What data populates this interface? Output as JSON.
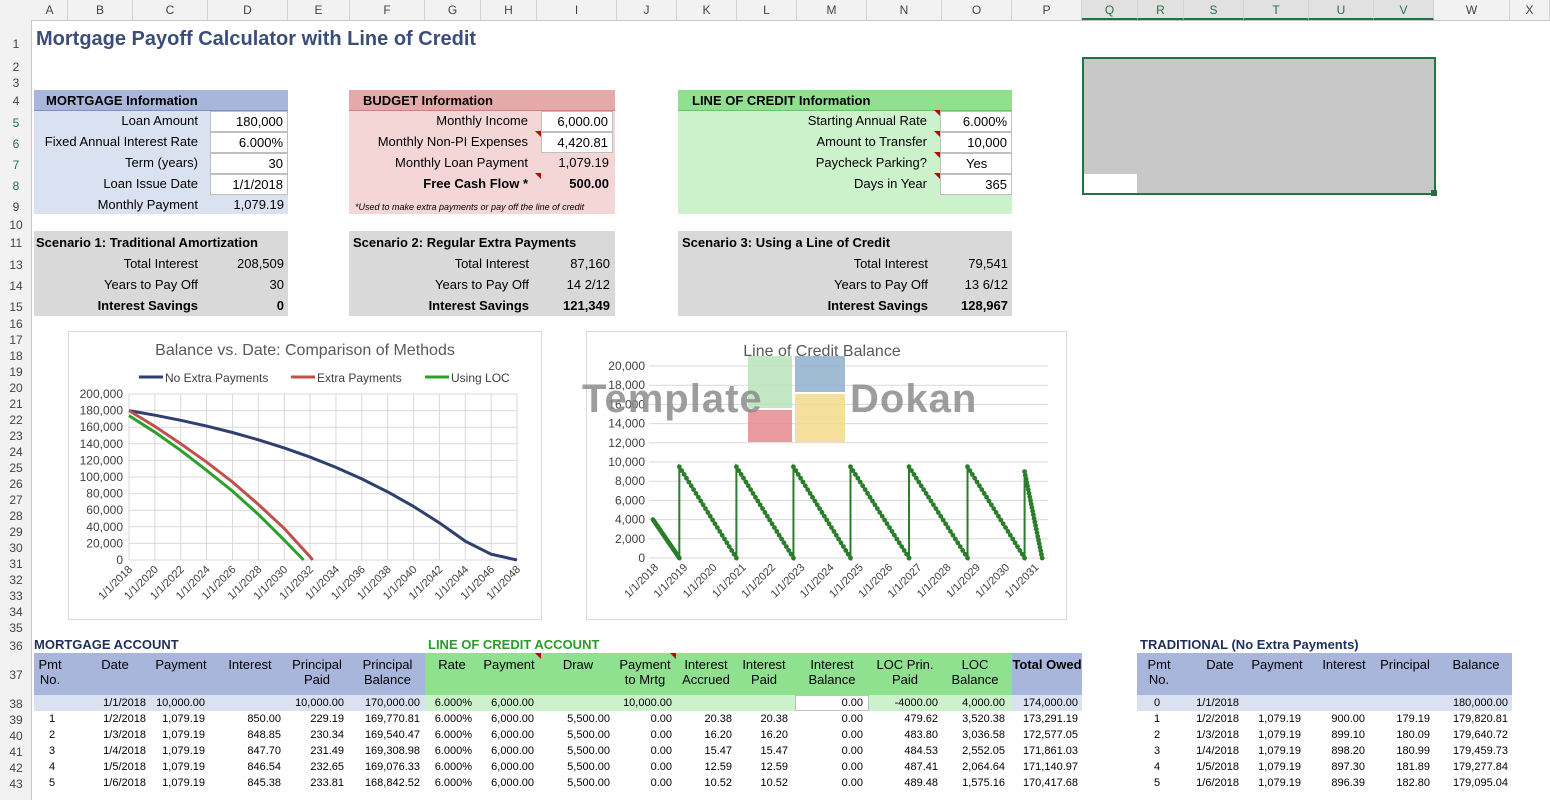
{
  "columns": [
    "A",
    "B",
    "C",
    "D",
    "E",
    "F",
    "G",
    "H",
    "I",
    "J",
    "K",
    "L",
    "M",
    "N",
    "O",
    "P",
    "Q",
    "R",
    "S",
    "T",
    "U",
    "V",
    "W",
    "X"
  ],
  "rows": [
    "1",
    "2",
    "3",
    "4",
    "5",
    "6",
    "7",
    "8",
    "9",
    "10",
    "11",
    "13",
    "14",
    "15",
    "16",
    "17",
    "18",
    "19",
    "20",
    "21",
    "22",
    "23",
    "24",
    "25",
    "26",
    "27",
    "28",
    "29",
    "30",
    "31",
    "32",
    "33",
    "34",
    "35",
    "36",
    "37",
    "38",
    "39",
    "40",
    "41",
    "42",
    "43"
  ],
  "title": "Mortgage Payoff Calculator with Line of Credit",
  "mortgage": {
    "header": "MORTGAGE Information",
    "loan_amount_label": "Loan Amount",
    "loan_amount": "180,000",
    "rate_label": "Fixed Annual Interest Rate",
    "rate": "6.000%",
    "term_label": "Term (years)",
    "term": "30",
    "issue_label": "Loan Issue Date",
    "issue": "1/1/2018",
    "payment_label": "Monthly Payment",
    "payment": "1,079.19"
  },
  "budget": {
    "header": "BUDGET Information",
    "income_label": "Monthly Income",
    "income": "6,000.00",
    "expenses_label": "Monthly Non-PI Expenses",
    "expenses": "4,420.81",
    "loanpay_label": "Monthly Loan Payment",
    "loanpay": "1,079.19",
    "fcf_label": "Free Cash Flow *",
    "fcf": "500.00",
    "note": "*Used to make extra payments or pay off the line of credit"
  },
  "loc": {
    "header": "LINE OF CREDIT Information",
    "rate_label": "Starting Annual Rate",
    "rate": "6.000%",
    "transfer_label": "Amount to Transfer",
    "transfer": "10,000",
    "parking_label": "Paycheck Parking?",
    "parking": "Yes",
    "days_label": "Days in Year",
    "days": "365"
  },
  "scenarios": [
    {
      "title": "Scenario 1: Traditional Amortization",
      "ti_label": "Total Interest",
      "ti": "208,509",
      "yp_label": "Years to Pay Off",
      "yp": "30",
      "is_label": "Interest Savings",
      "is": "0"
    },
    {
      "title": "Scenario 2: Regular Extra Payments",
      "ti_label": "Total Interest",
      "ti": "87,160",
      "yp_label": "Years to Pay Off",
      "yp": "14 2/12",
      "is_label": "Interest Savings",
      "is": "121,349"
    },
    {
      "title": "Scenario 3: Using a Line of Credit",
      "ti_label": "Total Interest",
      "ti": "79,541",
      "yp_label": "Years to Pay Off",
      "yp": "13 6/12",
      "is_label": "Interest Savings",
      "is": "128,967"
    }
  ],
  "watermark": {
    "left": "Template",
    "right": "Dokan"
  },
  "chart_data": [
    {
      "type": "line",
      "title": "Balance vs. Date: Comparison of Methods",
      "xlabel": "",
      "ylabel": "",
      "ylim": [
        0,
        200000
      ],
      "yticks": [
        "200,000",
        "180,000",
        "160,000",
        "140,000",
        "120,000",
        "100,000",
        "80,000",
        "60,000",
        "40,000",
        "20,000",
        "0"
      ],
      "xticks": [
        "1/1/2018",
        "1/1/2020",
        "1/1/2022",
        "1/1/2024",
        "1/1/2026",
        "1/1/2028",
        "1/1/2030",
        "1/1/2032",
        "1/1/2034",
        "1/1/2036",
        "1/1/2038",
        "1/1/2040",
        "1/1/2042",
        "1/1/2044",
        "1/1/2046",
        "1/1/2048"
      ],
      "legend": "top",
      "grid": true,
      "series": [
        {
          "name": "No Extra Payments",
          "color": "#2e3f70",
          "x": [
            2018,
            2020,
            2022,
            2024,
            2026,
            2028,
            2030,
            2032,
            2034,
            2036,
            2038,
            2040,
            2042,
            2044,
            2046,
            2048
          ],
          "values": [
            180000,
            174500,
            168300,
            161400,
            153600,
            144800,
            135000,
            124000,
            111600,
            97700,
            82100,
            64500,
            44800,
            22700,
            7000,
            0
          ]
        },
        {
          "name": "Extra Payments",
          "color": "#c0504d",
          "x": [
            2018,
            2020,
            2022,
            2024,
            2026,
            2028,
            2030,
            2032,
            2032.2
          ],
          "values": [
            180000,
            161000,
            140000,
            118000,
            94000,
            67000,
            38000,
            4000,
            0
          ]
        },
        {
          "name": "Using LOC",
          "color": "#2ca02c",
          "x": [
            2018,
            2020,
            2022,
            2024,
            2026,
            2028,
            2030,
            2031.5
          ],
          "values": [
            174000,
            154000,
            132000,
            108000,
            83000,
            55000,
            24000,
            0
          ]
        }
      ]
    },
    {
      "type": "line",
      "title": "Line of Credit Balance",
      "xlabel": "",
      "ylabel": "",
      "ylim": [
        0,
        20000
      ],
      "yticks": [
        "20,000",
        "18,000",
        "16,000",
        "14,000",
        "12,000",
        "10,000",
        "8,000",
        "6,000",
        "4,000",
        "2,000",
        "0"
      ],
      "xticks": [
        "1/1/2018",
        "1/1/2019",
        "1/1/2020",
        "1/1/2021",
        "1/1/2022",
        "1/1/2023",
        "1/1/2024",
        "1/1/2025",
        "1/1/2026",
        "1/1/2027",
        "1/1/2028",
        "1/1/2029",
        "1/1/2030",
        "1/1/2031"
      ],
      "legend": "none",
      "grid": true,
      "series": [
        {
          "name": "",
          "color": "#2a7d2a",
          "cycles": [
            {
              "start": 2018.0,
              "peak": 4000,
              "end": 2018.9
            },
            {
              "start": 2018.9,
              "peak": 9500,
              "end": 2020.85
            },
            {
              "start": 2020.85,
              "peak": 9500,
              "end": 2022.8
            },
            {
              "start": 2022.8,
              "peak": 9500,
              "end": 2024.75
            },
            {
              "start": 2024.75,
              "peak": 9500,
              "end": 2026.75
            },
            {
              "start": 2026.75,
              "peak": 9500,
              "end": 2028.75
            },
            {
              "start": 2028.75,
              "peak": 9500,
              "end": 2030.7
            },
            {
              "start": 2030.7,
              "peak": 9000,
              "end": 2031.3
            }
          ]
        }
      ]
    }
  ],
  "mortgage_account": {
    "title": "MORTGAGE ACCOUNT",
    "headers": [
      "Pmt No.",
      "Date",
      "Payment",
      "Interest",
      "Principal Paid",
      "Principal Balance"
    ]
  },
  "loc_account": {
    "title": "LINE OF CREDIT ACCOUNT",
    "headers": [
      "Rate",
      "Payment",
      "Draw",
      "Payment to Mrtg",
      "Interest Accrued",
      "Interest Paid",
      "Interest Balance",
      "LOC Prin. Paid",
      "LOC Balance",
      "Total Owed"
    ]
  },
  "main_rows": [
    [
      "",
      "1/1/2018",
      "10,000.00",
      "",
      "10,000.00",
      "170,000.00",
      "6.000%",
      "6,000.00",
      "",
      "10,000.00",
      "",
      "",
      "0.00",
      "-4000.00",
      "4,000.00",
      "174,000.00"
    ],
    [
      "1",
      "1/2/2018",
      "1,079.19",
      "850.00",
      "229.19",
      "169,770.81",
      "6.000%",
      "6,000.00",
      "5,500.00",
      "0.00",
      "20.38",
      "20.38",
      "0.00",
      "479.62",
      "3,520.38",
      "173,291.19"
    ],
    [
      "2",
      "1/3/2018",
      "1,079.19",
      "848.85",
      "230.34",
      "169,540.47",
      "6.000%",
      "6,000.00",
      "5,500.00",
      "0.00",
      "16.20",
      "16.20",
      "0.00",
      "483.80",
      "3,036.58",
      "172,577.05"
    ],
    [
      "3",
      "1/4/2018",
      "1,079.19",
      "847.70",
      "231.49",
      "169,308.98",
      "6.000%",
      "6,000.00",
      "5,500.00",
      "0.00",
      "15.47",
      "15.47",
      "0.00",
      "484.53",
      "2,552.05",
      "171,861.03"
    ],
    [
      "4",
      "1/5/2018",
      "1,079.19",
      "846.54",
      "232.65",
      "169,076.33",
      "6.000%",
      "6,000.00",
      "5,500.00",
      "0.00",
      "12.59",
      "12.59",
      "0.00",
      "487.41",
      "2,064.64",
      "171,140.97"
    ],
    [
      "5",
      "1/6/2018",
      "1,079.19",
      "845.38",
      "233.81",
      "168,842.52",
      "6.000%",
      "6,000.00",
      "5,500.00",
      "0.00",
      "10.52",
      "10.52",
      "0.00",
      "489.48",
      "1,575.16",
      "170,417.68"
    ]
  ],
  "traditional": {
    "title": "TRADITIONAL (No Extra Payments)",
    "headers": [
      "Pmt No.",
      "Date",
      "Payment",
      "Interest",
      "Principal",
      "Balance"
    ],
    "rows": [
      [
        "0",
        "1/1/2018",
        "",
        "",
        "",
        "180,000.00"
      ],
      [
        "1",
        "1/2/2018",
        "1,079.19",
        "900.00",
        "179.19",
        "179,820.81"
      ],
      [
        "2",
        "1/3/2018",
        "1,079.19",
        "899.10",
        "180.09",
        "179,640.72"
      ],
      [
        "3",
        "1/4/2018",
        "1,079.19",
        "898.20",
        "180.99",
        "179,459.73"
      ],
      [
        "4",
        "1/5/2018",
        "1,079.19",
        "897.30",
        "181.89",
        "179,277.84"
      ],
      [
        "5",
        "1/6/2018",
        "1,079.19",
        "896.39",
        "182.80",
        "179,095.04"
      ]
    ]
  }
}
